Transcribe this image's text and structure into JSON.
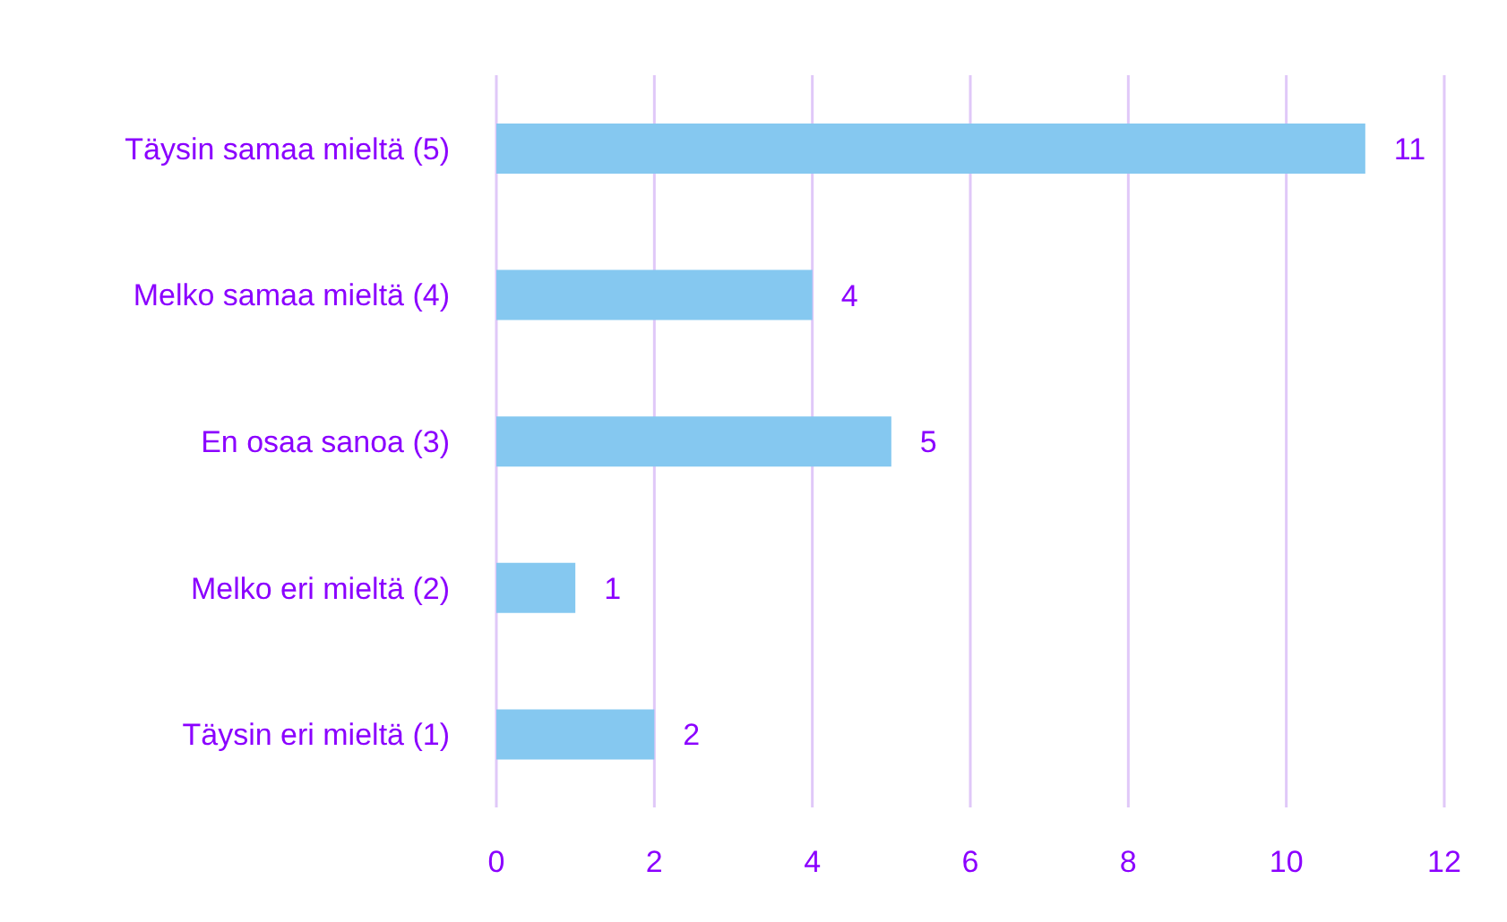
{
  "chart_data": {
    "type": "bar",
    "orientation": "horizontal",
    "categories": [
      "Täysin samaa mieltä (5)",
      "Melko samaa mieltä (4)",
      "En osaa sanoa (3)",
      "Melko eri mieltä (2)",
      "Täysin eri mieltä (1)"
    ],
    "values": [
      11,
      4,
      5,
      1,
      2
    ],
    "color": "#85c8f0",
    "xlim": [
      0,
      12
    ],
    "xticks": [
      0,
      2,
      4,
      6,
      8,
      10,
      12
    ],
    "grid": "x",
    "data_labels": true
  }
}
